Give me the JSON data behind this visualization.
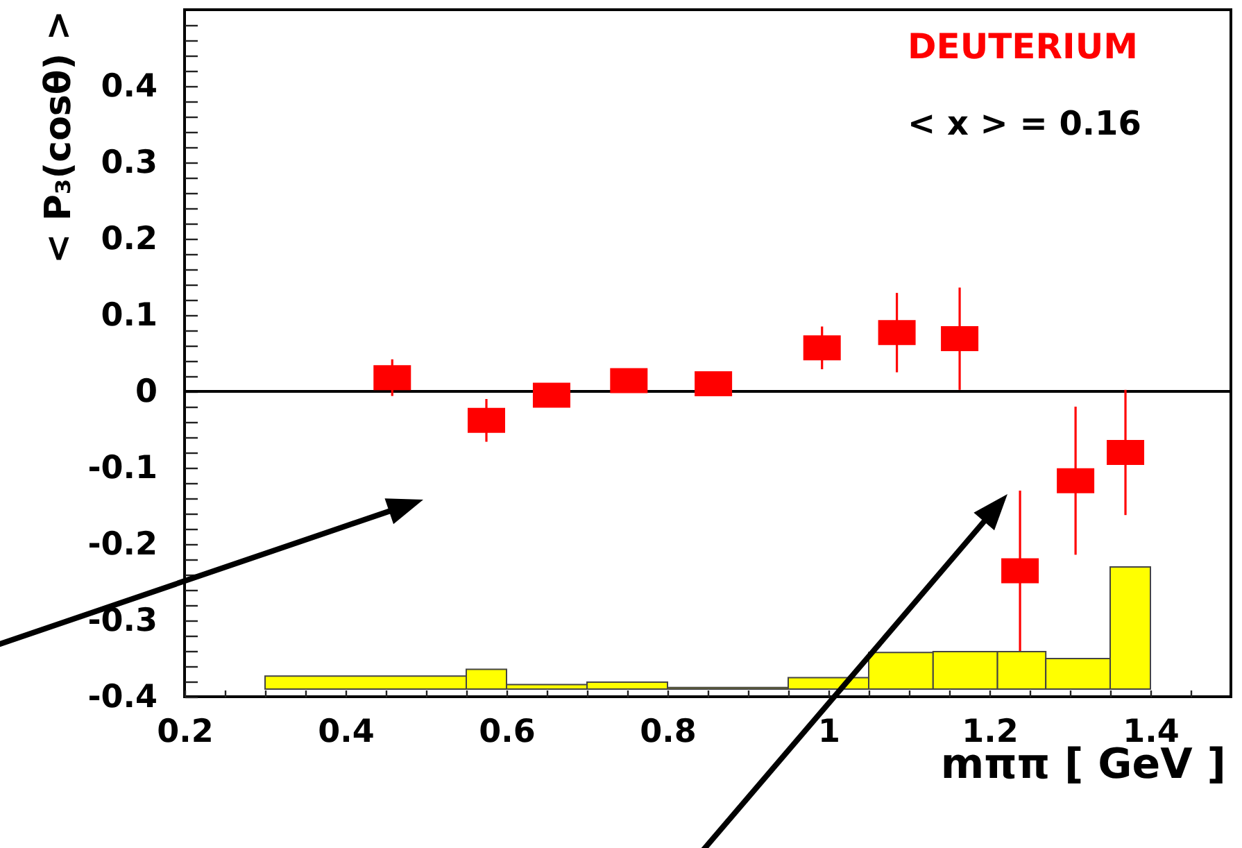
{
  "chart_data": {
    "type": "scatter",
    "xlabel": "mππ [ GeV ]",
    "ylabel": "< P₃(cosθ) >",
    "xlim": [
      0.2,
      1.5
    ],
    "ylim": [
      -0.4,
      0.5
    ],
    "xticks": [
      0.2,
      {
        "value": 0.25,
        "label": null
      },
      {
        "value": 0.3,
        "label": null
      },
      {
        "value": 0.35,
        "label": null
      },
      0.4,
      {
        "value": 0.45,
        "label": null
      },
      {
        "value": 0.5,
        "label": null
      },
      {
        "value": 0.55,
        "label": null
      },
      0.6,
      {
        "value": 0.65,
        "label": null
      },
      {
        "value": 0.7,
        "label": null
      },
      {
        "value": 0.75,
        "label": null
      },
      0.8,
      {
        "value": 0.85,
        "label": null
      },
      {
        "value": 0.9,
        "label": null
      },
      {
        "value": 0.95,
        "label": null
      },
      1,
      {
        "value": 1.05,
        "label": null
      },
      {
        "value": 1.1,
        "label": null
      },
      {
        "value": 1.15,
        "label": null
      },
      1.2,
      {
        "value": 1.25,
        "label": null
      },
      {
        "value": 1.3,
        "label": null
      },
      {
        "value": 1.35,
        "label": null
      },
      1.4,
      {
        "value": 1.45,
        "label": null
      }
    ],
    "yticks": [
      -0.4,
      {
        "value": -0.38,
        "label": null
      },
      {
        "value": -0.36,
        "label": null
      },
      {
        "value": -0.34,
        "label": null
      },
      {
        "value": -0.32,
        "label": null
      },
      -0.3,
      {
        "value": -0.28,
        "label": null
      },
      {
        "value": -0.26,
        "label": null
      },
      {
        "value": -0.24,
        "label": null
      },
      {
        "value": -0.22,
        "label": null
      },
      -0.2,
      {
        "value": -0.18,
        "label": null
      },
      {
        "value": -0.16,
        "label": null
      },
      {
        "value": -0.14,
        "label": null
      },
      {
        "value": -0.12,
        "label": null
      },
      -0.1,
      {
        "value": -0.08,
        "label": null
      },
      {
        "value": -0.06,
        "label": null
      },
      {
        "value": -0.04,
        "label": null
      },
      {
        "value": -0.02,
        "label": null
      },
      0,
      {
        "value": 0.02,
        "label": null
      },
      {
        "value": 0.04,
        "label": null
      },
      {
        "value": 0.06,
        "label": null
      },
      {
        "value": 0.08,
        "label": null
      },
      0.1,
      {
        "value": 0.12,
        "label": null
      },
      {
        "value": 0.14,
        "label": null
      },
      {
        "value": 0.16,
        "label": null
      },
      {
        "value": 0.18,
        "label": null
      },
      0.2,
      {
        "value": 0.22,
        "label": null
      },
      {
        "value": 0.24,
        "label": null
      },
      {
        "value": 0.26,
        "label": null
      },
      {
        "value": 0.28,
        "label": null
      },
      0.3,
      {
        "value": 0.32,
        "label": null
      },
      {
        "value": 0.34,
        "label": null
      },
      {
        "value": 0.36,
        "label": null
      },
      {
        "value": 0.38,
        "label": null
      },
      0.4,
      {
        "value": 0.42,
        "label": null
      },
      {
        "value": 0.44,
        "label": null
      },
      {
        "value": 0.46,
        "label": null
      },
      {
        "value": 0.48,
        "label": null
      }
    ],
    "marker": "square",
    "legend": "top right",
    "annotations": [
      "< x > = 0.16"
    ],
    "ref_lines": [
      {
        "axis": "y",
        "value": 0,
        "color": "#000000"
      }
    ],
    "series": [
      {
        "type": "histogram",
        "color": "#ffff00",
        "bins": [
          0.3,
          0.55,
          0.6,
          0.7,
          0.8,
          0.95,
          1.05,
          1.13,
          1.21,
          1.27,
          1.35,
          1.4
        ],
        "base": [
          -0.39,
          -0.39,
          -0.39,
          -0.39,
          -0.39,
          -0.39,
          -0.39,
          -0.39,
          -0.39,
          -0.39,
          -0.39
        ],
        "values": [
          0.017,
          0.026,
          0.006,
          0.009,
          0.002,
          0.015,
          0.048,
          0.049,
          0.049,
          0.04,
          0.16
        ]
      },
      {
        "name": "DEUTERIUM",
        "color": "#ff0000",
        "x": [
          0.458,
          0.575,
          0.656,
          0.752,
          0.857,
          0.992,
          1.085,
          1.163,
          1.238,
          1.307,
          1.369
        ],
        "values": [
          0.018,
          -0.038,
          -0.005,
          0.014,
          0.01,
          0.057,
          0.077,
          0.069,
          -0.235,
          -0.117,
          -0.08
        ],
        "errors": [
          0.024,
          0.028,
          null,
          null,
          null,
          0.028,
          0.052,
          0.067,
          0.105,
          0.097,
          0.082
        ]
      }
    ]
  }
}
